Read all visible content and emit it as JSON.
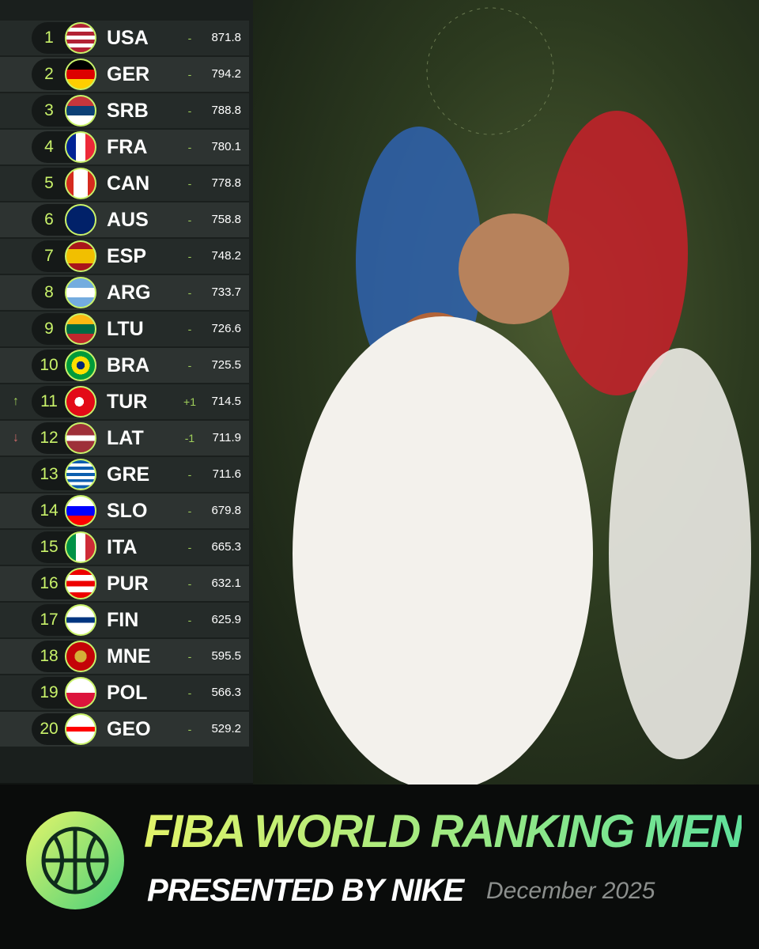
{
  "header": {
    "title": "FIBA WORLD RANKING MEN",
    "subtitle": "PRESENTED BY NIKE",
    "date": "December 2025"
  },
  "table": {
    "rows": [
      [
        1,
        "USA",
        "-",
        871.8
      ],
      [
        2,
        "GER",
        "-",
        794.2
      ],
      [
        3,
        "SRB",
        "-",
        788.8
      ],
      [
        4,
        "FRA",
        "-",
        780.1
      ],
      [
        5,
        "CAN",
        "-",
        778.8
      ],
      [
        6,
        "AUS",
        "-",
        758.8
      ],
      [
        7,
        "ESP",
        "-",
        748.2
      ],
      [
        8,
        "ARG",
        "-",
        733.7
      ],
      [
        9,
        "LTU",
        "-",
        726.6
      ],
      [
        10,
        "BRA",
        "-",
        725.5
      ],
      [
        11,
        "TUR",
        "+1",
        714.5
      ],
      [
        12,
        "LAT",
        "-1",
        711.9
      ],
      [
        13,
        "GRE",
        "-",
        711.6
      ],
      [
        14,
        "SLO",
        "-",
        679.8
      ],
      [
        15,
        "ITA",
        "-",
        665.3
      ],
      [
        16,
        "PUR",
        "-",
        632.1
      ],
      [
        17,
        "FIN",
        "-",
        625.9
      ],
      [
        18,
        "MNE",
        "-",
        595.5
      ],
      [
        19,
        "POL",
        "-",
        566.3
      ],
      [
        20,
        "GEO",
        "-",
        529.2
      ]
    ]
  }
}
